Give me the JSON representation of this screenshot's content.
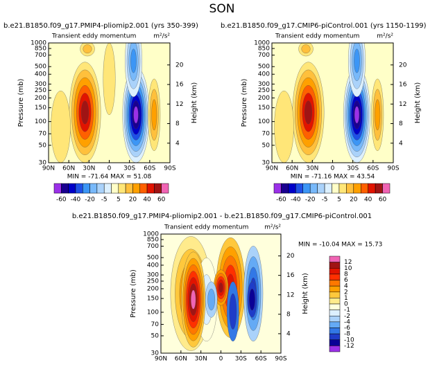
{
  "title": "SON",
  "chart_data": [
    {
      "type": "contour",
      "title": "b.e21.B1850.f09_g17.PMIP4-pliomip2.001  (yrs 350-399)",
      "subtitle_left": "Transient eddy momentum",
      "subtitle_right": "m²/s²",
      "stats": "MIN = -71.64   MAX =  51.08",
      "ylabel": "Pressure (mb)",
      "y2label": "Height (km)",
      "log_y": true,
      "ylim": [
        1000,
        30
      ],
      "yticks": [
        30,
        50,
        70,
        100,
        150,
        200,
        250,
        300,
        400,
        500,
        700,
        850,
        1000
      ],
      "y2lim": [
        0,
        24.5
      ],
      "y2ticks": [
        4,
        8,
        12,
        16,
        20
      ],
      "xlim": [
        90,
        -90
      ],
      "xticks": [
        {
          "value": 90,
          "label": "90N"
        },
        {
          "value": 60,
          "label": "60N"
        },
        {
          "value": 30,
          "label": "30N"
        },
        0,
        {
          "value": -30,
          "label": "30S"
        },
        {
          "value": -60,
          "label": "60S"
        },
        {
          "value": -90,
          "label": "90S"
        }
      ],
      "colorbar": {
        "orientation": "horizontal",
        "ticks": [
          -60,
          -40,
          -20,
          -5,
          5,
          20,
          40,
          60
        ],
        "colors": [
          "#9b30e8",
          "#1a0090",
          "#0000c8",
          "#1e50e6",
          "#3c96f5",
          "#78b9fa",
          "#aad2fa",
          "#dcf0ff",
          "#ffffc8",
          "#ffe678",
          "#ffc03c",
          "#ffa000",
          "#ff6000",
          "#e11400",
          "#a01414",
          "#f064b4"
        ]
      }
    },
    {
      "type": "contour",
      "title": "b.e21.B1850.f09_g17.CMIP6-piControl.001  (yrs 1150-1199)",
      "subtitle_left": "Transient eddy momentum",
      "subtitle_right": "m²/s²",
      "stats": "MIN = -71.16   MAX =  43.54",
      "ylabel": "Pressure (mb)",
      "y2label": "Height (km)",
      "log_y": true,
      "ylim": [
        1000,
        30
      ],
      "yticks": [
        30,
        50,
        70,
        100,
        150,
        200,
        250,
        300,
        400,
        500,
        700,
        850,
        1000
      ],
      "y2lim": [
        0,
        24.5
      ],
      "y2ticks": [
        4,
        8,
        12,
        16,
        20
      ],
      "xlim": [
        90,
        -90
      ],
      "xticks": [
        {
          "value": 90,
          "label": "90N"
        },
        {
          "value": 60,
          "label": "60N"
        },
        {
          "value": 30,
          "label": "30N"
        },
        0,
        {
          "value": -30,
          "label": "30S"
        },
        {
          "value": -60,
          "label": "60S"
        },
        {
          "value": -90,
          "label": "90S"
        }
      ],
      "colorbar": {
        "orientation": "horizontal",
        "ticks": [
          -60,
          -40,
          -20,
          -5,
          5,
          20,
          40,
          60
        ],
        "colors": [
          "#9b30e8",
          "#1a0090",
          "#0000c8",
          "#1e50e6",
          "#3c96f5",
          "#78b9fa",
          "#aad2fa",
          "#dcf0ff",
          "#ffffc8",
          "#ffe678",
          "#ffc03c",
          "#ffa000",
          "#ff6000",
          "#e11400",
          "#a01414",
          "#f064b4"
        ]
      }
    },
    {
      "type": "contour",
      "title": "b.e21.B1850.f09_g17.PMIP4-pliomip2.001 - b.e21.B1850.f09_g17.CMIP6-piControl.001",
      "subtitle_left": "Transient eddy momentum",
      "subtitle_right": "m²/s²",
      "stats": "MIN = -10.04   MAX =  15.73",
      "ylabel": "Pressure (mb)",
      "y2label": "Height (km)",
      "log_y": true,
      "ylim": [
        1000,
        30
      ],
      "yticks": [
        30,
        50,
        70,
        100,
        150,
        200,
        250,
        300,
        400,
        500,
        700,
        850,
        1000
      ],
      "y2lim": [
        0,
        24.5
      ],
      "y2ticks": [
        4,
        8,
        12,
        16,
        20
      ],
      "xlim": [
        90,
        -90
      ],
      "xticks": [
        {
          "value": 90,
          "label": "90N"
        },
        {
          "value": 60,
          "label": "60N"
        },
        {
          "value": 30,
          "label": "30N"
        },
        0,
        {
          "value": -30,
          "label": "30S"
        },
        {
          "value": -60,
          "label": "60S"
        },
        {
          "value": -90,
          "label": "90S"
        }
      ],
      "colorbar": {
        "orientation": "vertical",
        "ticks": [
          12,
          10,
          8,
          6,
          4,
          2,
          1,
          0,
          -1,
          -2,
          -4,
          -6,
          -8,
          -10,
          -12
        ],
        "colors": [
          "#f064b4",
          "#a01414",
          "#e11400",
          "#ff3000",
          "#ff7800",
          "#ffa000",
          "#ffc83c",
          "#ffeb8c",
          "#ffffdc",
          "#dcf0ff",
          "#aad2fa",
          "#64aaf5",
          "#3278e6",
          "#1e3cc8",
          "#0a0096",
          "#9b30e8"
        ]
      }
    }
  ]
}
